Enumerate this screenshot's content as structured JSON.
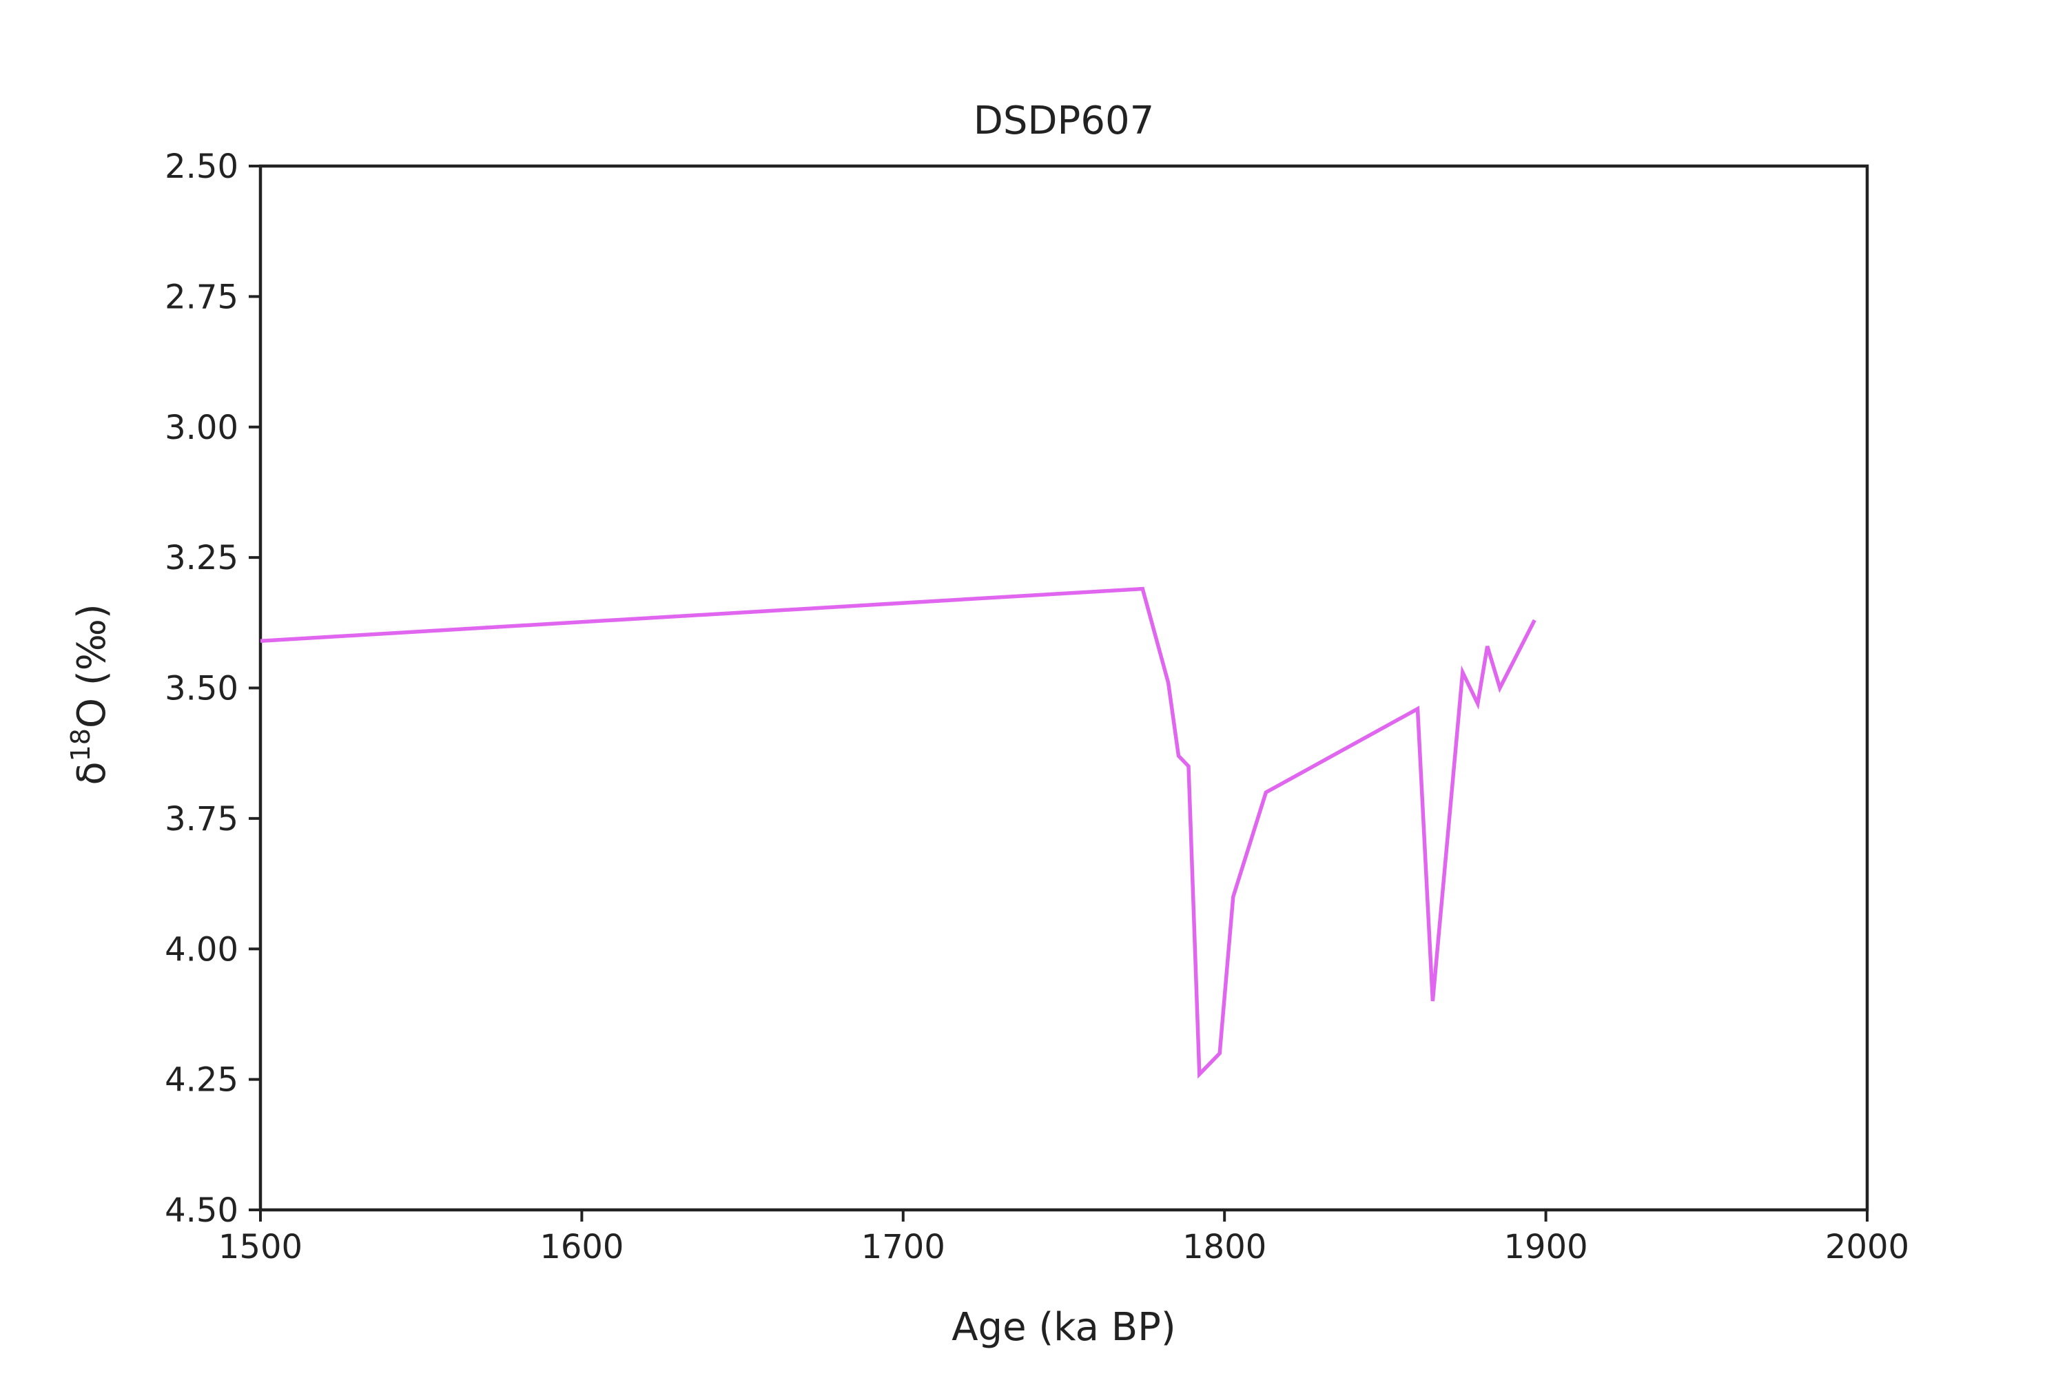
{
  "chart_data": {
    "type": "line",
    "title": "DSDP607",
    "xlabel": "Age (ka BP)",
    "ylabel": {
      "prefix": "δ",
      "superscript": "18",
      "suffix": "O (‰)"
    },
    "xlim": [
      1500,
      2000
    ],
    "ylim": [
      2.5,
      4.5
    ],
    "y_inverted": true,
    "grid": false,
    "x_ticks": [
      "1500",
      "1600",
      "1700",
      "1800",
      "1900",
      "2000"
    ],
    "y_ticks": [
      "2.50",
      "2.75",
      "3.00",
      "3.25",
      "3.50",
      "3.75",
      "4.00",
      "4.25",
      "4.50"
    ],
    "series": [
      {
        "color": "#e066f0",
        "x": [
          1500,
          1774.5,
          1782.5,
          1785.7,
          1788.8,
          1792.2,
          1798.5,
          1802.7,
          1812.9,
          1860.1,
          1864.8,
          1874.1,
          1878.8,
          1881.8,
          1885.7,
          1896.5
        ],
        "y": [
          3.41,
          3.31,
          3.49,
          3.63,
          3.65,
          4.24,
          4.2,
          3.9,
          3.7,
          3.54,
          4.1,
          3.47,
          3.53,
          3.42,
          3.5,
          3.37
        ]
      }
    ]
  }
}
